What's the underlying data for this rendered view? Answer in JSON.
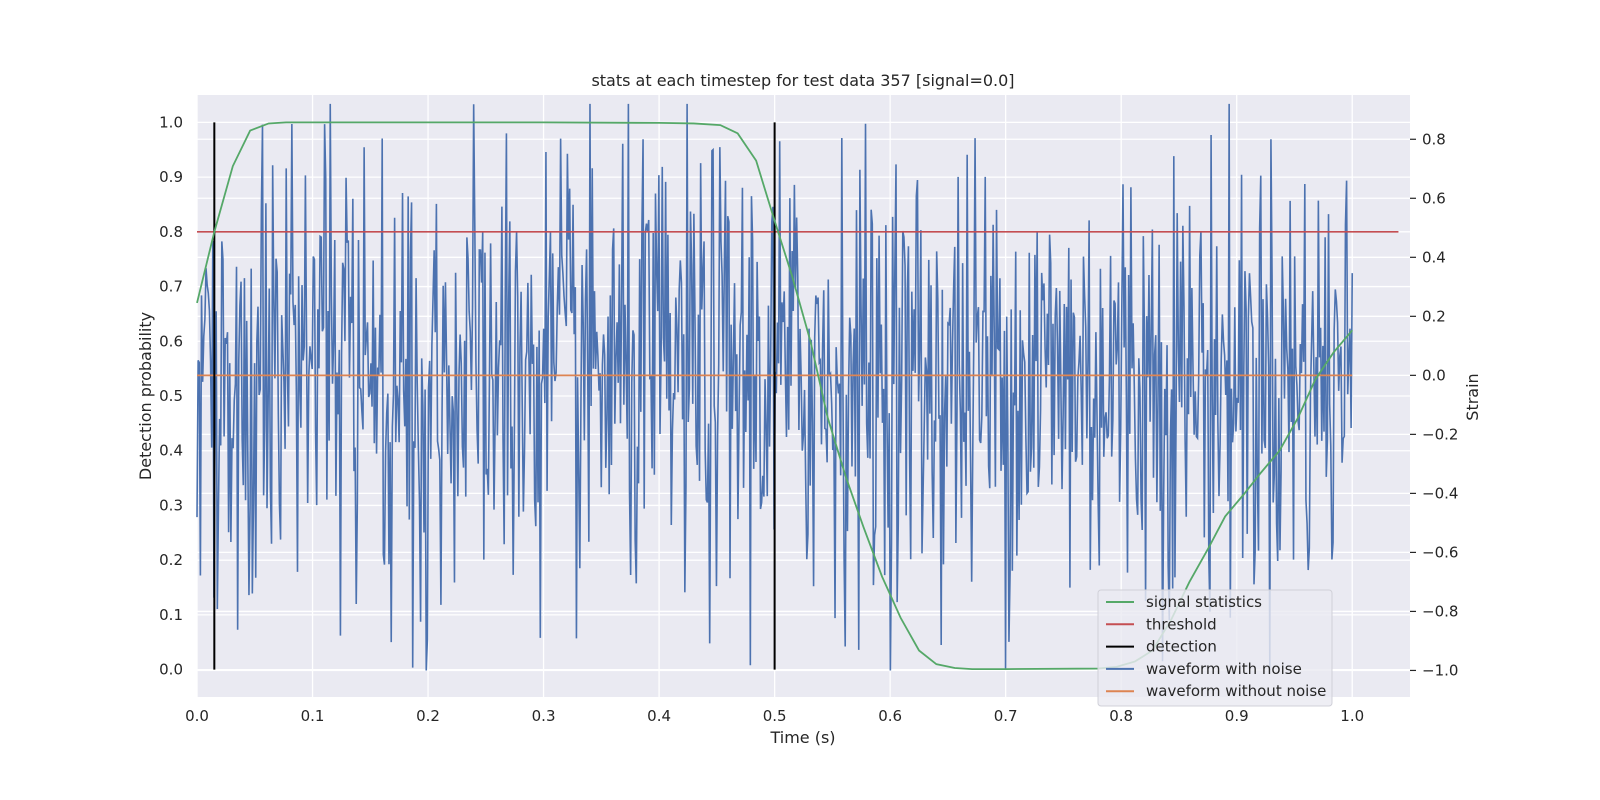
{
  "chart_data": {
    "type": "line",
    "title": "stats at each timestep for test data 357 [signal=0.0]",
    "xlabel": "Time (s)",
    "ylabel": "Detection probability",
    "y2label": "Strain",
    "xlim": [
      0.0,
      1.05
    ],
    "ylim": [
      -0.05,
      1.05
    ],
    "y2lim": [
      -1.09,
      0.95
    ],
    "x_ticks": [
      "0.0",
      "0.1",
      "0.2",
      "0.3",
      "0.4",
      "0.5",
      "0.6",
      "0.7",
      "0.8",
      "0.9",
      "1.0"
    ],
    "y_ticks": [
      "0.0",
      "0.1",
      "0.2",
      "0.3",
      "0.4",
      "0.5",
      "0.6",
      "0.7",
      "0.8",
      "0.9",
      "1.0"
    ],
    "y2_ticks": [
      "−1.0",
      "−0.8",
      "−0.6",
      "−0.4",
      "−0.2",
      "0.0",
      "0.2",
      "0.4",
      "0.6",
      "0.8"
    ],
    "grid": true,
    "legend_position": "lower-right",
    "colors": {
      "signal": "#55a868",
      "threshold": "#c44e52",
      "detection": "#000000",
      "noisy": "#4c72b0",
      "clean": "#dd8452",
      "background": "#eaeaf2",
      "grid": "#ffffff"
    },
    "series": [
      {
        "name": "signal statistics",
        "axis": "left",
        "x": [
          0.0,
          0.015,
          0.031,
          0.046,
          0.062,
          0.077,
          0.093,
          0.2,
          0.3,
          0.4,
          0.43,
          0.453,
          0.468,
          0.484,
          0.5,
          0.515,
          0.531,
          0.546,
          0.562,
          0.577,
          0.593,
          0.609,
          0.625,
          0.64,
          0.656,
          0.671,
          0.7,
          0.78,
          0.796,
          0.812,
          0.827,
          0.843,
          0.859,
          0.875,
          0.89,
          0.906,
          0.921,
          0.937,
          0.953,
          0.968,
          0.984,
          1.0
        ],
        "y": [
          0.67,
          0.8,
          0.92,
          0.985,
          0.998,
          1.0,
          1.0,
          1.0,
          1.0,
          0.999,
          0.998,
          0.995,
          0.98,
          0.93,
          0.82,
          0.72,
          0.6,
          0.46,
          0.35,
          0.26,
          0.17,
          0.095,
          0.035,
          0.01,
          0.003,
          0.001,
          0.001,
          0.002,
          0.005,
          0.015,
          0.035,
          0.09,
          0.16,
          0.22,
          0.28,
          0.32,
          0.36,
          0.4,
          0.46,
          0.53,
          0.58,
          0.62
        ]
      },
      {
        "name": "threshold",
        "axis": "left",
        "x": [
          0.0,
          1.04
        ],
        "y": [
          0.8,
          0.8
        ]
      },
      {
        "name": "detection",
        "axis": "left",
        "type": "vlines",
        "x": [
          0.015,
          0.5
        ],
        "y_range": [
          0.0,
          1.0
        ]
      },
      {
        "name": "waveform with noise",
        "axis": "right",
        "x_range": [
          0.0,
          1.0
        ],
        "amplitude": 0.38,
        "min": -1.0,
        "max": 0.92
      },
      {
        "name": "waveform without noise",
        "axis": "right",
        "x": [
          0.0,
          1.0
        ],
        "y": [
          0.0,
          0.0
        ]
      }
    ]
  }
}
